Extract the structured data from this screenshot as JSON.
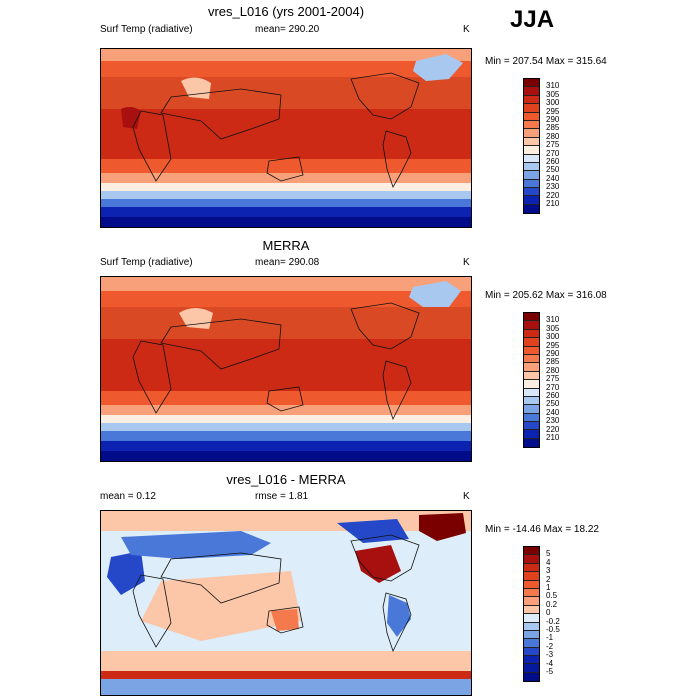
{
  "season": "JJA",
  "panels": [
    {
      "title": "vres_L016 (yrs 2001-2004)",
      "left_label": "Surf Temp (radiative)",
      "center_label": "mean= 290.20",
      "right_label": "K",
      "minmax": "Min = 207.54 Max = 315.64",
      "colorbar": {
        "labels": [
          "310",
          "305",
          "300",
          "295",
          "290",
          "285",
          "280",
          "275",
          "270",
          "260",
          "250",
          "240",
          "230",
          "220",
          "210"
        ],
        "colors": [
          "#7a0000",
          "#a80f0f",
          "#cc2a14",
          "#e0421e",
          "#ee5a2e",
          "#f47a4e",
          "#f8a07a",
          "#fcc6a8",
          "#fdeee2",
          "#d8e8f8",
          "#a8c8ef",
          "#7aa4e4",
          "#4a78d8",
          "#2448c8",
          "#0c22b0",
          "#000c8a"
        ]
      }
    },
    {
      "title": "MERRA",
      "left_label": "Surf Temp (radiative)",
      "center_label": "mean= 290.08",
      "right_label": "K",
      "minmax": "Min = 205.62 Max = 316.08",
      "colorbar": {
        "labels": [
          "310",
          "305",
          "300",
          "295",
          "290",
          "285",
          "280",
          "275",
          "270",
          "260",
          "250",
          "240",
          "230",
          "220",
          "210"
        ],
        "colors": [
          "#7a0000",
          "#a80f0f",
          "#cc2a14",
          "#e0421e",
          "#ee5a2e",
          "#f47a4e",
          "#f8a07a",
          "#fcc6a8",
          "#fdeee2",
          "#d8e8f8",
          "#a8c8ef",
          "#7aa4e4",
          "#4a78d8",
          "#2448c8",
          "#0c22b0",
          "#000c8a"
        ]
      }
    },
    {
      "title": "vres_L016 - MERRA",
      "left_label": "mean =   0.12",
      "center_label": "rmse =   1.81",
      "right_label": "K",
      "minmax": "Min = -14.46 Max =  18.22",
      "colorbar": {
        "labels": [
          "5",
          "4",
          "3",
          "2",
          "1",
          "0.5",
          "0.2",
          "0",
          "-0.2",
          "-0.5",
          "-1",
          "-2",
          "-3",
          "-4",
          "-5"
        ],
        "colors": [
          "#7a0000",
          "#a80f0f",
          "#cc2a14",
          "#e0421e",
          "#ee5a2e",
          "#f47a4e",
          "#f8a07a",
          "#fcc6a8",
          "#ddeefa",
          "#a8c8ef",
          "#7aa4e4",
          "#4a78d8",
          "#2448c8",
          "#0c22b0",
          "#061aa0",
          "#000c8a"
        ]
      }
    }
  ]
}
